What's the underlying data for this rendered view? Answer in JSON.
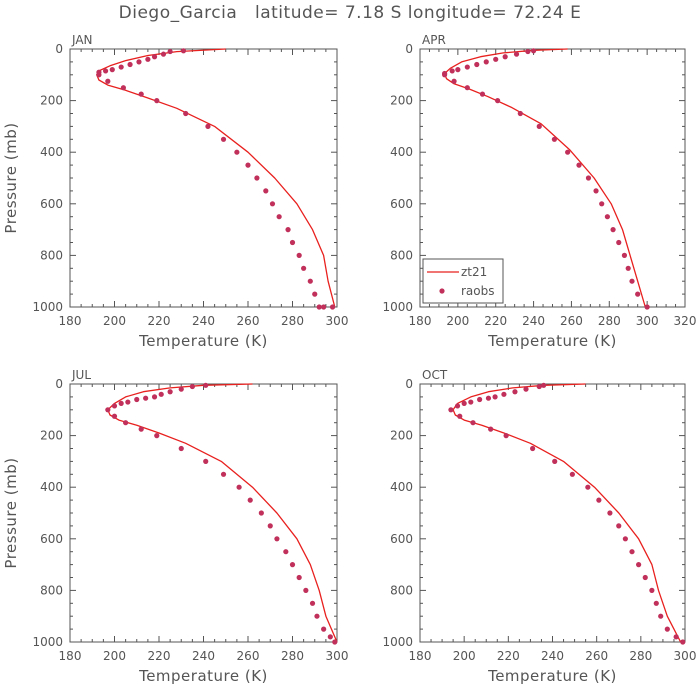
{
  "title": "Diego_Garcia   latitude= 7.18 S longitude= 72.24 E",
  "colors": {
    "axis": "#555555",
    "zt21_line": "#e8201e",
    "raobs_marker": "#c0305a"
  },
  "legend": {
    "line_label": "zt21",
    "marker_label": "raobs"
  },
  "chart_data": [
    {
      "type": "line",
      "panel_label": "JAN",
      "xlabel": "Temperature (K)",
      "ylabel": "Pressure (mb)",
      "xlim": [
        180,
        300
      ],
      "ylim": [
        1000,
        0
      ],
      "xticks": [
        180,
        200,
        220,
        240,
        260,
        280,
        300
      ],
      "yticks": [
        0,
        200,
        400,
        600,
        800,
        1000
      ],
      "grid": false,
      "legend": false,
      "series": [
        {
          "name": "zt21",
          "style": "line",
          "x": [
            250,
            228,
            215,
            205,
            198,
            193,
            192,
            193,
            197,
            205,
            215,
            228,
            245,
            260,
            272,
            282,
            289,
            294,
            296,
            299
          ],
          "y": [
            0,
            10,
            25,
            45,
            65,
            85,
            100,
            120,
            140,
            160,
            190,
            230,
            300,
            400,
            500,
            600,
            700,
            800,
            900,
            1000
          ]
        },
        {
          "name": "raobs",
          "style": "marker",
          "x": [
            231,
            225,
            222,
            218,
            215,
            211,
            207,
            203,
            199,
            196,
            193,
            193,
            197,
            204,
            212,
            219,
            232,
            242,
            249,
            255,
            260,
            264,
            268,
            271,
            274,
            278,
            280,
            283,
            285,
            288,
            290,
            292,
            294,
            298
          ],
          "y": [
            7,
            10,
            20,
            30,
            40,
            50,
            60,
            70,
            80,
            85,
            90,
            100,
            125,
            150,
            175,
            200,
            250,
            300,
            350,
            400,
            450,
            500,
            550,
            600,
            650,
            700,
            750,
            800,
            850,
            900,
            950,
            1000,
            1000,
            1000
          ]
        }
      ]
    },
    {
      "type": "line",
      "panel_label": "APR",
      "xlabel": "Temperature (K)",
      "ylabel": "",
      "xlim": [
        180,
        320
      ],
      "ylim": [
        1000,
        0
      ],
      "xticks": [
        180,
        200,
        220,
        240,
        260,
        280,
        300,
        320
      ],
      "yticks": [
        0,
        200,
        400,
        600,
        800,
        1000
      ],
      "grid": false,
      "legend": true,
      "legend_position": "bottom-left",
      "series": [
        {
          "name": "zt21",
          "style": "line",
          "x": [
            258,
            240,
            224,
            212,
            202,
            196,
            193,
            194,
            198,
            206,
            216,
            228,
            244,
            259,
            272,
            281,
            287,
            291,
            295,
            299
          ],
          "y": [
            0,
            5,
            15,
            30,
            50,
            75,
            95,
            115,
            135,
            155,
            185,
            225,
            290,
            390,
            500,
            600,
            700,
            800,
            900,
            1000
          ]
        },
        {
          "name": "raobs",
          "style": "marker",
          "x": [
            240,
            237,
            231,
            225,
            220,
            215,
            210,
            205,
            200,
            197,
            193,
            193,
            198,
            205,
            213,
            221,
            233,
            243,
            251,
            258,
            264,
            269,
            273,
            276,
            279,
            282,
            285,
            288,
            290,
            292,
            295,
            300
          ],
          "y": [
            7,
            10,
            20,
            30,
            40,
            50,
            60,
            70,
            80,
            85,
            95,
            100,
            125,
            150,
            175,
            200,
            250,
            300,
            350,
            400,
            450,
            500,
            550,
            600,
            650,
            700,
            750,
            800,
            850,
            900,
            950,
            1000
          ]
        }
      ]
    },
    {
      "type": "line",
      "panel_label": "JUL",
      "xlabel": "Temperature (K)",
      "ylabel": "Pressure (mb)",
      "xlim": [
        180,
        300
      ],
      "ylim": [
        1000,
        0
      ],
      "xticks": [
        180,
        200,
        220,
        240,
        260,
        280,
        300
      ],
      "yticks": [
        0,
        200,
        400,
        600,
        800,
        1000
      ],
      "grid": false,
      "legend": false,
      "series": [
        {
          "name": "zt21",
          "style": "line",
          "x": [
            262,
            240,
            225,
            213,
            205,
            200,
            197,
            198,
            202,
            210,
            220,
            232,
            248,
            262,
            273,
            282,
            288,
            292,
            295,
            300
          ],
          "y": [
            0,
            5,
            15,
            30,
            50,
            75,
            100,
            120,
            140,
            160,
            190,
            230,
            300,
            400,
            500,
            600,
            700,
            800,
            900,
            1000
          ]
        },
        {
          "name": "raobs",
          "style": "marker",
          "x": [
            241,
            235,
            230,
            225,
            221,
            218,
            214,
            210,
            206,
            203,
            200,
            197,
            200,
            205,
            212,
            219,
            230,
            241,
            249,
            256,
            261,
            266,
            270,
            273,
            277,
            280,
            283,
            286,
            289,
            291,
            294,
            297,
            299
          ],
          "y": [
            5,
            10,
            20,
            30,
            40,
            50,
            55,
            60,
            70,
            75,
            85,
            100,
            125,
            150,
            175,
            200,
            250,
            300,
            350,
            400,
            450,
            500,
            550,
            600,
            650,
            700,
            750,
            800,
            850,
            900,
            950,
            980,
            1000
          ]
        }
      ]
    },
    {
      "type": "line",
      "panel_label": "OCT",
      "xlabel": "Temperature (K)",
      "ylabel": "",
      "xlim": [
        180,
        300
      ],
      "ylim": [
        1000,
        0
      ],
      "xticks": [
        180,
        200,
        220,
        240,
        260,
        280,
        300
      ],
      "yticks": [
        0,
        200,
        400,
        600,
        800,
        1000
      ],
      "grid": false,
      "legend": false,
      "series": [
        {
          "name": "zt21",
          "style": "line",
          "x": [
            255,
            236,
            222,
            211,
            203,
            197,
            195,
            196,
            200,
            208,
            218,
            230,
            245,
            259,
            270,
            279,
            285,
            288,
            292,
            298
          ],
          "y": [
            0,
            5,
            15,
            30,
            50,
            75,
            100,
            120,
            140,
            160,
            190,
            230,
            300,
            400,
            500,
            600,
            700,
            800,
            900,
            1000
          ]
        },
        {
          "name": "raobs",
          "style": "marker",
          "x": [
            236,
            234,
            228,
            223,
            218,
            214,
            211,
            207,
            203,
            200,
            197,
            194,
            198,
            204,
            212,
            219,
            231,
            241,
            249,
            256,
            261,
            266,
            270,
            273,
            276,
            279,
            282,
            285,
            287,
            289,
            292,
            296,
            299
          ],
          "y": [
            5,
            10,
            20,
            30,
            40,
            50,
            55,
            60,
            70,
            75,
            85,
            100,
            125,
            150,
            175,
            200,
            250,
            300,
            350,
            400,
            450,
            500,
            550,
            600,
            650,
            700,
            750,
            800,
            850,
            900,
            950,
            980,
            1000
          ]
        }
      ]
    }
  ]
}
